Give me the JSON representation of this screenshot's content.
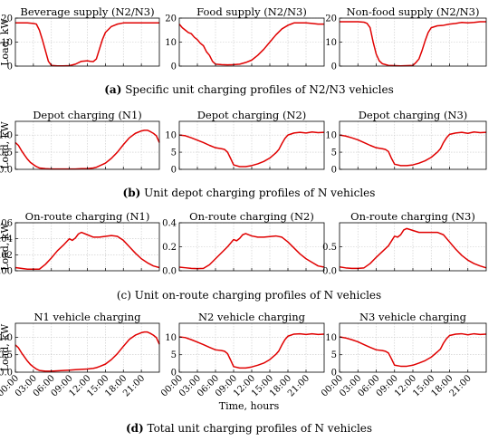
{
  "figure": {
    "ylabel": "Load, kW",
    "xlabel": "Time, hours",
    "x_tick_labels": [
      "00:00",
      "03:00",
      "06:00",
      "09:00",
      "12:00",
      "15:00",
      "18:00",
      "21:00"
    ],
    "line_color": "#e00000"
  },
  "rows": [
    {
      "caption_bold": "(a)",
      "caption_text": " Specific unit charging profiles of N2/N3 vehicles",
      "ylim": [
        0,
        20
      ],
      "y_ticks": [
        0,
        10,
        20
      ],
      "y_tick_labels": [
        "0",
        "10",
        "20"
      ],
      "tick_labels_per_panel": [
        true,
        true,
        true
      ]
    },
    {
      "caption_bold": "(b)",
      "caption_text": " Unit depot charging profiles of N vehicles",
      "ylim": [
        0,
        1.4
      ],
      "y_ticks": [
        0,
        0.5,
        1.0
      ],
      "y_tick_labels": [
        "0.0",
        "0.5",
        "1.0"
      ],
      "panel_ylims": [
        [
          0,
          1.4
        ],
        [
          0,
          14
        ],
        [
          0,
          14
        ]
      ],
      "panel_y_tick_labels": [
        [
          "0.0",
          "0.5",
          "1.0"
        ],
        [
          "0",
          "5",
          "10"
        ],
        [
          "0",
          "5",
          "10"
        ]
      ]
    },
    {
      "caption_bold": "",
      "caption_text": "(c) Unit on-route charging profiles of N vehicles",
      "panel_ylims": [
        [
          0,
          0.06
        ],
        [
          0,
          0.4
        ],
        [
          0,
          1.0
        ]
      ],
      "panel_y_tick_labels": [
        [
          "0.00",
          "0.02",
          "0.04",
          "0.06"
        ],
        [
          "0.0",
          "0.2",
          "0.4"
        ],
        [
          "0.0",
          "0.5"
        ]
      ]
    },
    {
      "caption_bold": "(d)",
      "caption_text": " Total unit charging profiles of N vehicles",
      "panel_ylims": [
        [
          0,
          1.4
        ],
        [
          0,
          14
        ],
        [
          0,
          14
        ]
      ],
      "panel_y_tick_labels": [
        [
          "0.0",
          "0.5",
          "1.0"
        ],
        [
          "0",
          "5",
          "10"
        ],
        [
          "0",
          "5",
          "10"
        ]
      ]
    }
  ],
  "chart_data": [
    {
      "type": "line",
      "title": "Beverage supply (N2/N3)",
      "ylabel": "Load, kW",
      "xlim": [
        0,
        24
      ],
      "ylim": [
        0,
        20
      ],
      "x": [
        0,
        1,
        2,
        3,
        3.5,
        4,
        4.5,
        5,
        5.5,
        6,
        7,
        8,
        9,
        10,
        11,
        12,
        12.5,
        13,
        13.5,
        14,
        14.5,
        15,
        16,
        17,
        18,
        19,
        20,
        21,
        22,
        23,
        24
      ],
      "y": [
        18,
        18,
        18,
        17.8,
        17.5,
        15,
        11,
        6.5,
        2,
        0.3,
        0.1,
        0.1,
        0.2,
        0.8,
        2,
        2.2,
        2,
        1.9,
        3,
        7,
        11,
        14,
        16.5,
        17.5,
        18,
        18,
        18,
        18,
        18,
        18,
        18
      ]
    },
    {
      "type": "line",
      "title": "Food supply (N2/N3)",
      "xlim": [
        0,
        24
      ],
      "ylim": [
        0,
        20
      ],
      "x": [
        0,
        0.5,
        1,
        1.5,
        2,
        2.5,
        3,
        3.5,
        4,
        4.5,
        5,
        5.5,
        6,
        7,
        8,
        9,
        10,
        11,
        12,
        13,
        14,
        15,
        16,
        17,
        18,
        18.5,
        19,
        20,
        21,
        22,
        23,
        24
      ],
      "y": [
        17.5,
        16,
        15,
        14,
        13.5,
        12,
        11,
        9.5,
        8.5,
        6,
        4.5,
        2,
        0.8,
        0.6,
        0.5,
        0.6,
        0.8,
        1.5,
        2.5,
        4.5,
        7,
        10,
        13,
        15.5,
        17,
        17.5,
        18,
        18,
        18,
        17.8,
        17.5,
        17.5
      ]
    },
    {
      "type": "line",
      "title": "Non-food supply (N2/N3)",
      "xlim": [
        0,
        24
      ],
      "ylim": [
        0,
        20
      ],
      "x": [
        0,
        1,
        2,
        3,
        4,
        4.5,
        5,
        5.5,
        6,
        6.5,
        7,
        8,
        9,
        10,
        11,
        12,
        12.5,
        13,
        13.5,
        14,
        14.5,
        15,
        16,
        17,
        18,
        19,
        20,
        21,
        22,
        23,
        24
      ],
      "y": [
        18.5,
        18.5,
        18.5,
        18.5,
        18.3,
        17.8,
        16,
        10,
        5,
        2.2,
        1,
        0.3,
        0.2,
        0.1,
        0.2,
        0.3,
        1.5,
        3,
        6.5,
        10.5,
        14,
        16,
        16.8,
        17,
        17.5,
        17.8,
        18.2,
        18,
        18.2,
        18.5,
        18.5
      ]
    },
    {
      "type": "line",
      "title": "Depot charging (N1)",
      "ylabel": "Load, kW",
      "xlim": [
        0,
        24
      ],
      "ylim": [
        0,
        1.4
      ],
      "x": [
        0,
        0.5,
        1,
        1.5,
        2,
        2.5,
        3,
        3.5,
        4,
        5,
        6,
        7,
        8,
        9,
        10,
        11,
        12,
        13,
        13.5,
        14,
        15,
        16,
        17,
        18,
        19,
        20,
        21,
        21.5,
        22,
        22.5,
        23,
        23.5,
        24
      ],
      "y": [
        0.78,
        0.7,
        0.55,
        0.42,
        0.3,
        0.2,
        0.14,
        0.08,
        0.04,
        0.02,
        0.01,
        0.01,
        0.01,
        0.01,
        0.01,
        0.02,
        0.02,
        0.04,
        0.06,
        0.1,
        0.18,
        0.32,
        0.5,
        0.72,
        0.92,
        1.05,
        1.12,
        1.14,
        1.14,
        1.1,
        1.05,
        0.98,
        0.78
      ]
    },
    {
      "type": "line",
      "title": "Depot charging (N2)",
      "xlim": [
        0,
        24
      ],
      "ylim": [
        0,
        14
      ],
      "x": [
        0,
        1,
        2,
        3,
        4,
        5,
        6,
        7,
        7.5,
        8,
        8.5,
        9,
        10,
        11,
        12,
        13,
        14,
        15,
        16,
        16.5,
        17,
        17.5,
        18,
        19,
        20,
        21,
        22,
        23,
        24
      ],
      "y": [
        10,
        9.8,
        9.2,
        8.5,
        7.8,
        7,
        6.3,
        6,
        5.8,
        5,
        3.2,
        1.3,
        0.8,
        0.8,
        1.1,
        1.6,
        2.3,
        3.3,
        4.8,
        5.8,
        7.5,
        9,
        10,
        10.6,
        10.8,
        10.6,
        10.9,
        10.7,
        10.8
      ]
    },
    {
      "type": "line",
      "title": "Depot charging (N3)",
      "xlim": [
        0,
        24
      ],
      "ylim": [
        0,
        14
      ],
      "x": [
        0,
        1,
        2,
        3,
        4,
        5,
        6,
        7,
        7.5,
        8,
        8.5,
        9,
        10,
        11,
        12,
        13,
        14,
        15,
        16,
        16.5,
        17,
        17.5,
        18,
        19,
        20,
        21,
        22,
        23,
        24
      ],
      "y": [
        10,
        9.7,
        9.2,
        8.6,
        7.8,
        7,
        6.3,
        6,
        5.8,
        5.2,
        3.2,
        1.5,
        1.1,
        1.1,
        1.3,
        1.8,
        2.5,
        3.5,
        5,
        6,
        7.8,
        9.2,
        10.2,
        10.6,
        10.8,
        10.5,
        10.9,
        10.7,
        10.8
      ]
    },
    {
      "type": "line",
      "title": "On-route charging (N1)",
      "ylabel": "Load, kW",
      "xlim": [
        0,
        24
      ],
      "ylim": [
        0,
        0.06
      ],
      "x": [
        0,
        1,
        2,
        3,
        4,
        5,
        6,
        7,
        8,
        9,
        9.5,
        10,
        10.5,
        11,
        12,
        13,
        14,
        15,
        16,
        17,
        18,
        19,
        20,
        21,
        22,
        23,
        24
      ],
      "y": [
        0.004,
        0.003,
        0.002,
        0.002,
        0.002,
        0.008,
        0.016,
        0.025,
        0.032,
        0.04,
        0.038,
        0.041,
        0.046,
        0.048,
        0.045,
        0.042,
        0.042,
        0.043,
        0.044,
        0.043,
        0.038,
        0.03,
        0.022,
        0.015,
        0.01,
        0.006,
        0.004
      ]
    },
    {
      "type": "line",
      "title": "On-route charging (N2)",
      "xlim": [
        0,
        24
      ],
      "ylim": [
        0,
        0.4
      ],
      "x": [
        0,
        1,
        2,
        3,
        4,
        5,
        6,
        7,
        8,
        9,
        9.5,
        10,
        10.5,
        11,
        12,
        13,
        14,
        15,
        16,
        17,
        18,
        19,
        20,
        21,
        22,
        23,
        24
      ],
      "y": [
        0.03,
        0.025,
        0.02,
        0.018,
        0.02,
        0.05,
        0.1,
        0.15,
        0.2,
        0.26,
        0.25,
        0.27,
        0.3,
        0.31,
        0.29,
        0.28,
        0.28,
        0.285,
        0.29,
        0.28,
        0.24,
        0.19,
        0.14,
        0.1,
        0.07,
        0.04,
        0.03
      ]
    },
    {
      "type": "line",
      "title": "On-route charging (N3)",
      "xlim": [
        0,
        24
      ],
      "ylim": [
        0,
        1.0
      ],
      "x": [
        0,
        1,
        2,
        3,
        4,
        5,
        6,
        7,
        8,
        9,
        9.5,
        10,
        10.5,
        11,
        12,
        13,
        14,
        15,
        16,
        17,
        18,
        19,
        20,
        21,
        22,
        23,
        24
      ],
      "y": [
        0.08,
        0.06,
        0.05,
        0.05,
        0.06,
        0.15,
        0.28,
        0.4,
        0.52,
        0.72,
        0.7,
        0.75,
        0.85,
        0.88,
        0.84,
        0.8,
        0.8,
        0.8,
        0.8,
        0.75,
        0.6,
        0.45,
        0.32,
        0.22,
        0.15,
        0.1,
        0.06
      ]
    },
    {
      "type": "line",
      "title": "N1 vehicle charging",
      "ylabel": "Load, kW",
      "xlabel": "Time, hours",
      "xlim": [
        0,
        24
      ],
      "ylim": [
        0,
        1.4
      ],
      "x": [
        0,
        0.5,
        1,
        1.5,
        2,
        2.5,
        3,
        3.5,
        4,
        5,
        6,
        7,
        8,
        9,
        10,
        11,
        12,
        13,
        13.5,
        14,
        15,
        16,
        17,
        18,
        19,
        20,
        21,
        21.5,
        22,
        22.5,
        23,
        23.5,
        24
      ],
      "y": [
        0.78,
        0.7,
        0.56,
        0.44,
        0.32,
        0.22,
        0.15,
        0.09,
        0.05,
        0.03,
        0.03,
        0.04,
        0.05,
        0.06,
        0.07,
        0.08,
        0.09,
        0.11,
        0.13,
        0.16,
        0.23,
        0.36,
        0.53,
        0.74,
        0.94,
        1.06,
        1.13,
        1.15,
        1.15,
        1.11,
        1.06,
        0.99,
        0.8
      ]
    },
    {
      "type": "line",
      "title": "N2 vehicle charging",
      "xlabel": "Time, hours",
      "xlim": [
        0,
        24
      ],
      "ylim": [
        0,
        14
      ],
      "x": [
        0,
        1,
        2,
        3,
        4,
        5,
        6,
        7,
        7.5,
        8,
        8.5,
        9,
        10,
        11,
        12,
        13,
        14,
        15,
        16,
        16.5,
        17,
        17.5,
        18,
        19,
        20,
        21,
        22,
        23,
        24
      ],
      "y": [
        10.1,
        9.9,
        9.3,
        8.6,
        7.9,
        7.1,
        6.4,
        6.2,
        6,
        5.3,
        3.5,
        1.6,
        1.2,
        1.2,
        1.5,
        2,
        2.6,
        3.6,
        5.1,
        6.1,
        7.8,
        9.3,
        10.3,
        10.9,
        11,
        10.8,
        11,
        10.8,
        10.9
      ]
    },
    {
      "type": "line",
      "title": "N3 vehicle charging",
      "xlabel": "Time, hours",
      "xlim": [
        0,
        24
      ],
      "ylim": [
        0,
        14
      ],
      "x": [
        0,
        1,
        2,
        3,
        4,
        5,
        6,
        7,
        7.5,
        8,
        8.5,
        9,
        10,
        11,
        12,
        13,
        14,
        15,
        16,
        16.5,
        17,
        17.5,
        18,
        19,
        20,
        21,
        22,
        23,
        24
      ],
      "y": [
        10.1,
        9.8,
        9.3,
        8.7,
        7.9,
        7.1,
        6.4,
        6.2,
        6,
        5.5,
        3.8,
        2,
        1.7,
        1.7,
        2,
        2.6,
        3.3,
        4.3,
        5.8,
        6.6,
        8.3,
        9.6,
        10.5,
        10.9,
        11,
        10.7,
        11,
        10.8,
        10.9
      ]
    }
  ]
}
